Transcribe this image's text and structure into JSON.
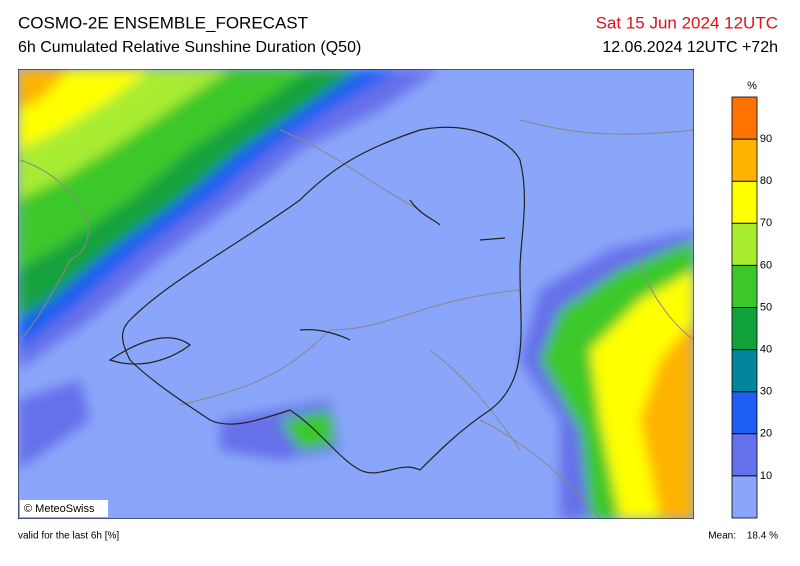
{
  "header": {
    "title": "COSMO-2E ENSEMBLE_FORECAST",
    "subtitle": "6h Cumulated Relative Sunshine Duration (Q50)",
    "valid_date": "Sat 15 Jun 2024 12UTC",
    "run": "12.06.2024 12UTC +72h"
  },
  "map": {
    "copyright": "© MeteoSwiss"
  },
  "colorbar": {
    "unit": "%",
    "ticks": [
      10,
      20,
      30,
      40,
      50,
      60,
      70,
      80,
      90
    ],
    "colors": [
      "#8aa6fa",
      "#6670ea",
      "#1f5ef2",
      "#00859a",
      "#12a23c",
      "#3cc82a",
      "#a8ec30",
      "#ffff00",
      "#ffb400",
      "#ff7400"
    ]
  },
  "footer": {
    "validity": "valid for the last 6h [%]",
    "mean_label": "Mean:",
    "mean_value": "18.4 %"
  }
}
